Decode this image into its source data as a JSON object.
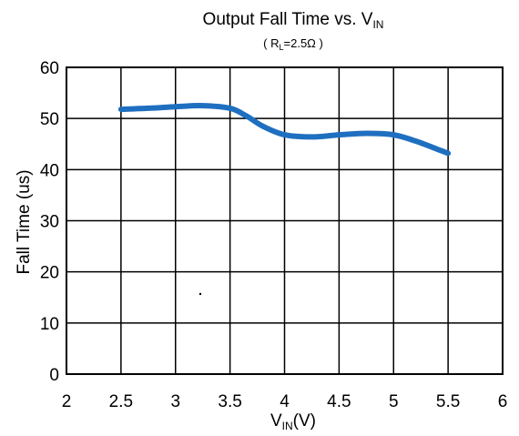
{
  "chart_data": {
    "type": "line",
    "title": {
      "main": "Output Fall Time vs. V",
      "sub": "IN"
    },
    "subtitle": {
      "open": "( R",
      "sub": "L",
      "rest": "=2.5Ω )"
    },
    "xlabel": {
      "main": "V",
      "sub": "IN",
      "rest": "(V)"
    },
    "ylabel": "Fall Time (us)",
    "xlim": [
      2,
      6
    ],
    "ylim": [
      0,
      60
    ],
    "xticks": [
      "2",
      "2.5",
      "3",
      "3.5",
      "4",
      "4.5",
      "5",
      "5.5",
      "6"
    ],
    "xtick_values": [
      2,
      2.5,
      3,
      3.5,
      4,
      4.5,
      5,
      5.5,
      6
    ],
    "yticks": [
      "0",
      "10",
      "20",
      "30",
      "40",
      "50",
      "60"
    ],
    "ytick_values": [
      0,
      10,
      20,
      30,
      40,
      50,
      60
    ],
    "grid": true,
    "line_color": "#1f6fc0",
    "series": [
      {
        "x": [
          2.5,
          2.75,
          3.0,
          3.25,
          3.5,
          3.65,
          3.8,
          4.0,
          4.25,
          4.5,
          4.75,
          5.0,
          5.2,
          5.4,
          5.5
        ],
        "y": [
          51.8,
          52.0,
          52.3,
          52.5,
          52.0,
          50.5,
          48.5,
          46.8,
          46.4,
          46.8,
          47.1,
          46.8,
          45.6,
          44.0,
          43.2
        ]
      }
    ]
  }
}
